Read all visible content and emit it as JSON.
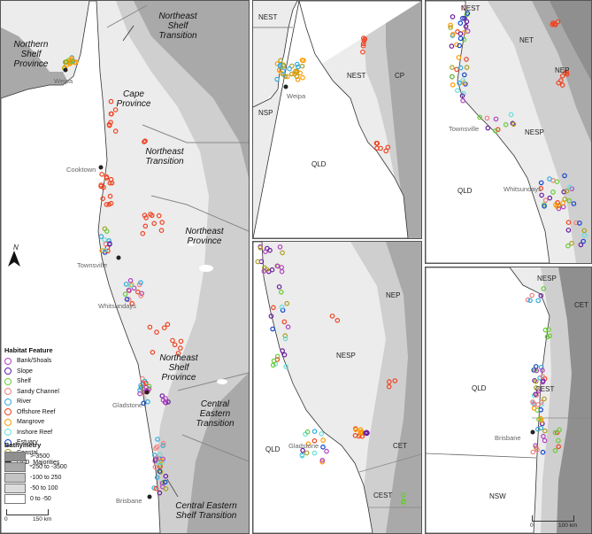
{
  "colors": {
    "sea_shallow": "#ececec",
    "sea_mid": "#cfcfcf",
    "sea_deep": "#a9a9a9",
    "sea_deepest": "#8f8f8f",
    "land": "#ffffff"
  },
  "legend": {
    "title": "Habitat Feature",
    "items": [
      {
        "label": "Bank/Shoals",
        "color": "#b040c0"
      },
      {
        "label": "Slope",
        "color": "#6a1c9c"
      },
      {
        "label": "Shelf",
        "color": "#66cc33"
      },
      {
        "label": "Sandy Channel",
        "color": "#f08080"
      },
      {
        "label": "River",
        "color": "#33aadd"
      },
      {
        "label": "Offshore Reef",
        "color": "#ee4422"
      },
      {
        "label": "Mangrove",
        "color": "#ff9900"
      },
      {
        "label": "Inshore Reef",
        "color": "#66dddd"
      },
      {
        "label": "Estuary",
        "color": "#1144cc"
      },
      {
        "label": "Coastal",
        "color": "#aaa022"
      },
      {
        "label": "QLD_Majorities",
        "color": "#222222"
      }
    ]
  },
  "bathymetry": {
    "title": "Bathymetry",
    "items": [
      {
        "label": ">-3500",
        "color": "#8f8f8f"
      },
      {
        "label": "-250 to -3500",
        "color": "#a9a9a9"
      },
      {
        "label": "-100 to 250",
        "color": "#c4c4c4"
      },
      {
        "label": "-50 to 100",
        "color": "#dcdcdc"
      },
      {
        "label": "0 to -50",
        "color": "#ffffff"
      }
    ]
  },
  "north_label": "N",
  "main": {
    "provinces": {
      "northern_shelf": "Northern\nShelf\nProvince",
      "northeast_shelf_transition": "Northeast\nShelf\nTransition",
      "cape": "Cape\nProvince",
      "northeast_transition": "Northeast\nTransition",
      "northeast_province": "Northeast\nProvince",
      "northeast_shelf_province": "Northeast\nShelf\nProvince",
      "central_eastern_transition": "Central\nEastern\nTransition",
      "central_eastern_shelf_transition": "Central Eastern\nShelf Transition"
    },
    "cities": {
      "weipa": "Weipa",
      "cooktown": "Cooktown",
      "townsville": "Townsville",
      "whitsundays": "Whitsundays",
      "gladstone": "Gladstone",
      "brisbane": "Brisbane"
    },
    "scale": {
      "start": "0",
      "end": "150 km"
    }
  },
  "inset_tc": {
    "labels": {
      "nest_top": "NEST",
      "nest_mid": "NEST",
      "cp": "CP",
      "nsp": "NSP",
      "qld": "QLD",
      "weipa": "Weipa"
    }
  },
  "inset_tr": {
    "labels": {
      "nest": "NEST",
      "net": "NET",
      "nep": "NEP",
      "nesp": "NESP",
      "qld": "QLD",
      "townsville": "Townsville",
      "whitsundays": "Whitsundays"
    }
  },
  "inset_bc": {
    "labels": {
      "nep": "NEP",
      "nesp": "NESP",
      "cet": "CET",
      "cest": "CEST",
      "qld": "QLD",
      "gladstone": "Gladstone"
    }
  },
  "inset_br": {
    "labels": {
      "nesp": "NESP",
      "cet": "CET",
      "cest": "CEST",
      "qld": "QLD",
      "nsw": "NSW",
      "brisbane": "Brisbane"
    },
    "scale": {
      "start": "0",
      "end": "100 km"
    }
  }
}
